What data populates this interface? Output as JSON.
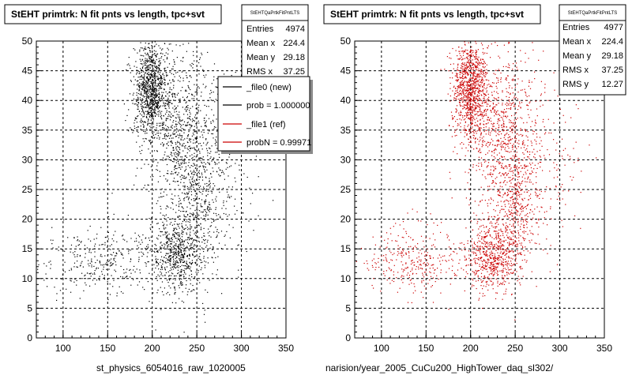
{
  "panels": [
    {
      "title": "StEHT primtrk: N fit pnts vs length, tpc+svt",
      "stats_header": "StEHTQaPrtkFitPntLTS",
      "stats": [
        {
          "label": "Entries",
          "value": "4974"
        },
        {
          "label": "Mean x",
          "value": "224.4"
        },
        {
          "label": "Mean y",
          "value": "29.18"
        },
        {
          "label": "RMS x",
          "value": "37.25"
        }
      ],
      "legend": [
        {
          "label": "_file0 (new)",
          "color": "#000000"
        },
        {
          "label": "prob = 1.000000",
          "color": "#000000"
        },
        {
          "label": "_file1 (ref)",
          "color": "#cc0000"
        },
        {
          "label": "probN = 0.99971",
          "color": "#cc0000"
        }
      ],
      "xlabel": "st_physics_6054016_raw_1020005",
      "point_color": "#000000"
    },
    {
      "title": "StEHT primtrk: N fit pnts vs length, tpc+svt",
      "stats_header": "StEHTQaPrtkFitPntLTS",
      "stats": [
        {
          "label": "Entries",
          "value": "4977"
        },
        {
          "label": "Mean x",
          "value": "224.4"
        },
        {
          "label": "Mean y",
          "value": "29.18"
        },
        {
          "label": "RMS x",
          "value": "37.25"
        },
        {
          "label": "RMS y",
          "value": "12.27"
        }
      ],
      "xlabel": "narision/year_2005_CuCu200_HighTower_daq_sl302/",
      "point_color": "#cc0000"
    }
  ],
  "chart_data": [
    {
      "type": "scatter",
      "title": "StEHT primtrk: N fit pnts vs length, tpc+svt",
      "xlabel": "st_physics_6054016_raw_1020005",
      "ylabel": "",
      "xlim": [
        70,
        350
      ],
      "ylim": [
        0,
        50
      ],
      "xticks": [
        100,
        150,
        200,
        250,
        300,
        350
      ],
      "yticks": [
        0,
        5,
        10,
        15,
        20,
        25,
        30,
        35,
        40,
        45,
        50
      ],
      "grid": true,
      "entries": 4974,
      "mean_x": 224.4,
      "mean_y": 29.18,
      "rms_x": 37.25,
      "clusters": [
        {
          "center": [
            198,
            42
          ],
          "spread": [
            10,
            4
          ],
          "weight": 0.3
        },
        {
          "center": [
            232,
            35
          ],
          "spread": [
            20,
            7
          ],
          "weight": 0.22
        },
        {
          "center": [
            225,
            14
          ],
          "spread": [
            14,
            3
          ],
          "weight": 0.18
        },
        {
          "center": [
            250,
            22
          ],
          "spread": [
            15,
            6
          ],
          "weight": 0.12
        },
        {
          "center": [
            140,
            13
          ],
          "spread": [
            30,
            3
          ],
          "weight": 0.1
        },
        {
          "center": [
            270,
            30
          ],
          "spread": [
            25,
            8
          ],
          "weight": 0.08
        }
      ]
    },
    {
      "type": "scatter",
      "title": "StEHT primtrk: N fit pnts vs length, tpc+svt",
      "xlabel": "narision/year_2005_CuCu200_HighTower_daq_sl302/",
      "ylabel": "",
      "xlim": [
        70,
        350
      ],
      "ylim": [
        0,
        50
      ],
      "xticks": [
        100,
        150,
        200,
        250,
        300,
        350
      ],
      "yticks": [
        0,
        5,
        10,
        15,
        20,
        25,
        30,
        35,
        40,
        45,
        50
      ],
      "grid": true,
      "entries": 4977,
      "mean_x": 224.4,
      "mean_y": 29.18,
      "rms_x": 37.25,
      "rms_y": 12.27,
      "clusters": [
        {
          "center": [
            198,
            42
          ],
          "spread": [
            10,
            4
          ],
          "weight": 0.3
        },
        {
          "center": [
            232,
            35
          ],
          "spread": [
            20,
            7
          ],
          "weight": 0.22
        },
        {
          "center": [
            225,
            14
          ],
          "spread": [
            14,
            3
          ],
          "weight": 0.18
        },
        {
          "center": [
            250,
            22
          ],
          "spread": [
            15,
            6
          ],
          "weight": 0.12
        },
        {
          "center": [
            140,
            13
          ],
          "spread": [
            30,
            3
          ],
          "weight": 0.1
        },
        {
          "center": [
            270,
            30
          ],
          "spread": [
            25,
            8
          ],
          "weight": 0.08
        }
      ]
    }
  ]
}
